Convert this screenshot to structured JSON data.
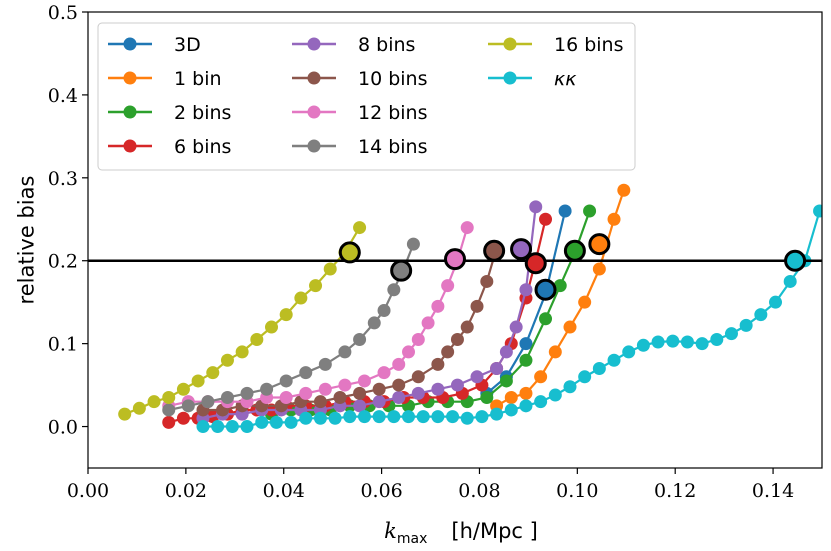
{
  "chart_data": {
    "type": "line",
    "ylabel": "relative bias",
    "xlabel_main": "k",
    "xlabel_sub": "max",
    "xlabel_units": "[h/Mpc ]",
    "xlim": [
      0.0,
      0.15
    ],
    "ylim": [
      -0.05,
      0.5
    ],
    "xticks": [
      0.0,
      0.02,
      0.04,
      0.06,
      0.08,
      0.1,
      0.12,
      0.14
    ],
    "xtick_labels": [
      "0.00",
      "0.02",
      "0.04",
      "0.06",
      "0.08",
      "0.10",
      "0.12",
      "0.14"
    ],
    "yticks": [
      0.0,
      0.1,
      0.2,
      0.3,
      0.4,
      0.5
    ],
    "ytick_labels": [
      "0.0",
      "0.1",
      "0.2",
      "0.3",
      "0.4",
      "0.5"
    ],
    "reference_line": {
      "y": 0.2,
      "color": "#000000"
    },
    "legend_placement": "upper-left",
    "series": [
      {
        "name": "3D",
        "color": "#1f77b4",
        "x": [
          0.0815,
          0.0855,
          0.0895,
          0.0935,
          0.0975
        ],
        "y": [
          0.04,
          0.06,
          0.1,
          0.16,
          0.26
        ],
        "marked": {
          "x": 0.0935,
          "y": 0.165
        }
      },
      {
        "name": "1 bin",
        "color": "#ff7f0e",
        "x": [
          0.0835,
          0.0865,
          0.0895,
          0.0925,
          0.0955,
          0.0985,
          0.1015,
          0.1045,
          0.1075,
          0.1095
        ],
        "y": [
          0.025,
          0.035,
          0.04,
          0.06,
          0.09,
          0.12,
          0.15,
          0.19,
          0.25,
          0.285
        ],
        "marked": {
          "x": 0.1045,
          "y": 0.22
        }
      },
      {
        "name": "2 bins",
        "color": "#2ca02c",
        "x": [
          0.0375,
          0.0415,
          0.0455,
          0.0495,
          0.0535,
          0.0575,
          0.0615,
          0.0655,
          0.0695,
          0.0735,
          0.0775,
          0.0815,
          0.0855,
          0.0895,
          0.0935,
          0.0965,
          0.0995,
          0.1025
        ],
        "y": [
          0.015,
          0.02,
          0.02,
          0.02,
          0.025,
          0.025,
          0.025,
          0.025,
          0.03,
          0.03,
          0.03,
          0.035,
          0.055,
          0.08,
          0.13,
          0.17,
          0.21,
          0.26
        ],
        "marked": {
          "x": 0.0995,
          "y": 0.212
        }
      },
      {
        "name": "6 bins",
        "color": "#d62728",
        "x": [
          0.0165,
          0.0195,
          0.0225,
          0.0255,
          0.0285,
          0.0315,
          0.0345,
          0.0375,
          0.0405,
          0.0445,
          0.0485,
          0.0525,
          0.0565,
          0.0605,
          0.0645,
          0.0685,
          0.0725,
          0.0765,
          0.0805,
          0.0835,
          0.0865,
          0.0895,
          0.0915,
          0.0935
        ],
        "y": [
          0.005,
          0.01,
          0.01,
          0.012,
          0.015,
          0.02,
          0.02,
          0.02,
          0.025,
          0.025,
          0.025,
          0.03,
          0.03,
          0.03,
          0.035,
          0.035,
          0.035,
          0.04,
          0.05,
          0.07,
          0.1,
          0.155,
          0.2,
          0.25
        ],
        "marked": {
          "x": 0.0915,
          "y": 0.197
        }
      },
      {
        "name": "8 bins",
        "color": "#9467bd",
        "x": [
          0.0235,
          0.0275,
          0.0315,
          0.0355,
          0.0395,
          0.0435,
          0.0475,
          0.0515,
          0.0555,
          0.0595,
          0.0635,
          0.0675,
          0.0715,
          0.0755,
          0.0795,
          0.0835,
          0.0855,
          0.0875,
          0.0895,
          0.0915
        ],
        "y": [
          0.01,
          0.015,
          0.015,
          0.02,
          0.02,
          0.02,
          0.02,
          0.025,
          0.025,
          0.03,
          0.035,
          0.04,
          0.045,
          0.05,
          0.06,
          0.07,
          0.09,
          0.12,
          0.165,
          0.265
        ],
        "marked": {
          "x": 0.0885,
          "y": 0.214
        }
      },
      {
        "name": "10 bins",
        "color": "#8c564b",
        "x": [
          0.0235,
          0.0275,
          0.0315,
          0.0355,
          0.0395,
          0.0435,
          0.0475,
          0.0515,
          0.0555,
          0.0595,
          0.0635,
          0.0675,
          0.0715,
          0.0735,
          0.0755,
          0.0775,
          0.0795,
          0.0815,
          0.0835
        ],
        "y": [
          0.02,
          0.02,
          0.025,
          0.025,
          0.025,
          0.03,
          0.03,
          0.035,
          0.04,
          0.045,
          0.05,
          0.06,
          0.075,
          0.09,
          0.105,
          0.12,
          0.145,
          0.175,
          0.215
        ],
        "marked": {
          "x": 0.083,
          "y": 0.212
        }
      },
      {
        "name": "12 bins",
        "color": "#e377c2",
        "x": [
          0.0165,
          0.0205,
          0.0245,
          0.0285,
          0.0325,
          0.0365,
          0.0405,
          0.0445,
          0.0485,
          0.0525,
          0.0565,
          0.0605,
          0.0635,
          0.0655,
          0.0675,
          0.0695,
          0.0715,
          0.0735,
          0.0755,
          0.0775
        ],
        "y": [
          0.025,
          0.03,
          0.03,
          0.03,
          0.03,
          0.035,
          0.035,
          0.04,
          0.045,
          0.05,
          0.055,
          0.065,
          0.075,
          0.09,
          0.105,
          0.125,
          0.145,
          0.17,
          0.2,
          0.24
        ],
        "marked": {
          "x": 0.075,
          "y": 0.202
        }
      },
      {
        "name": "14 bins",
        "color": "#7f7f7f",
        "x": [
          0.0165,
          0.0205,
          0.0245,
          0.0285,
          0.0325,
          0.0365,
          0.0405,
          0.0445,
          0.0485,
          0.0525,
          0.0555,
          0.0585,
          0.0605,
          0.0625,
          0.0645,
          0.0665
        ],
        "y": [
          0.02,
          0.025,
          0.03,
          0.035,
          0.04,
          0.045,
          0.055,
          0.065,
          0.075,
          0.09,
          0.105,
          0.125,
          0.14,
          0.165,
          0.19,
          0.22
        ],
        "marked": {
          "x": 0.064,
          "y": 0.188
        }
      },
      {
        "name": "16 bins",
        "color": "#bcbd22",
        "x": [
          0.0075,
          0.0105,
          0.0135,
          0.0165,
          0.0195,
          0.0225,
          0.0255,
          0.0285,
          0.0315,
          0.0345,
          0.0375,
          0.0405,
          0.0435,
          0.0465,
          0.0495,
          0.0525,
          0.0555
        ],
        "y": [
          0.015,
          0.022,
          0.03,
          0.035,
          0.045,
          0.055,
          0.065,
          0.08,
          0.09,
          0.105,
          0.12,
          0.135,
          0.155,
          0.17,
          0.19,
          0.21,
          0.24
        ],
        "marked": {
          "x": 0.0535,
          "y": 0.21
        }
      },
      {
        "name": "κκ",
        "color": "#17becf",
        "x": [
          0.0235,
          0.0265,
          0.0295,
          0.0325,
          0.0355,
          0.0385,
          0.0415,
          0.0445,
          0.0475,
          0.0505,
          0.0535,
          0.0565,
          0.0595,
          0.0625,
          0.0655,
          0.0685,
          0.0715,
          0.0745,
          0.0775,
          0.0805,
          0.0835,
          0.0865,
          0.0895,
          0.0925,
          0.0955,
          0.0985,
          0.1015,
          0.1045,
          0.1075,
          0.1105,
          0.1135,
          0.1165,
          0.1195,
          0.1225,
          0.1255,
          0.1285,
          0.1315,
          0.1345,
          0.1375,
          0.1405,
          0.1435,
          0.1465,
          0.1495
        ],
        "y": [
          0.0,
          0.0,
          0.0,
          0.0,
          0.005,
          0.005,
          0.005,
          0.01,
          0.01,
          0.01,
          0.012,
          0.012,
          0.012,
          0.012,
          0.012,
          0.012,
          0.012,
          0.012,
          0.01,
          0.012,
          0.015,
          0.02,
          0.025,
          0.03,
          0.038,
          0.048,
          0.06,
          0.07,
          0.08,
          0.09,
          0.098,
          0.102,
          0.103,
          0.102,
          0.1,
          0.105,
          0.112,
          0.122,
          0.135,
          0.15,
          0.175,
          0.2,
          0.26
        ],
        "marked": {
          "x": 0.1445,
          "y": 0.2
        }
      }
    ]
  }
}
